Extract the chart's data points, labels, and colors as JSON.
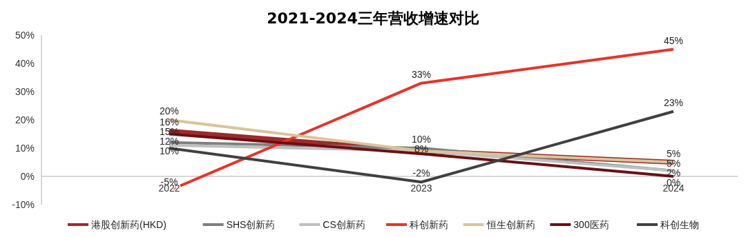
{
  "chart_data": {
    "type": "line",
    "title": "2021-2024三年营收增速对比",
    "categories": [
      "2022",
      "2023",
      "2024"
    ],
    "ylim": [
      -10,
      50
    ],
    "yticks": [
      {
        "value": -10,
        "label": "-10%"
      },
      {
        "value": 0,
        "label": "0%"
      },
      {
        "value": 10,
        "label": "10%"
      },
      {
        "value": 20,
        "label": "20%"
      },
      {
        "value": 30,
        "label": "30%"
      },
      {
        "value": 40,
        "label": "40%"
      },
      {
        "value": 50,
        "label": "50%"
      }
    ],
    "grid": false,
    "legend": "bottom",
    "marker": "none",
    "line_style": "solid",
    "series": [
      {
        "name": "港股创新药(HKD)",
        "color": "#9e2a2b",
        "values": [
          16,
          9,
          5
        ],
        "value_labels": [
          "16%",
          null,
          "5%"
        ]
      },
      {
        "name": "SHS创新药",
        "color": "#7f7f7f",
        "values": [
          12,
          10,
          2
        ],
        "value_labels": [
          "12%",
          "10%",
          "2%"
        ]
      },
      {
        "name": "CS创新药",
        "color": "#bfbfbf",
        "values": [
          11,
          9,
          2
        ],
        "value_labels": [
          null,
          null,
          null
        ]
      },
      {
        "name": "科创新药",
        "color": "#e8332a",
        "values": [
          -5,
          33,
          45
        ],
        "value_labels": [
          "-5%",
          "33%",
          "45%"
        ]
      },
      {
        "name": "恒生创新药",
        "color": "#d9c59a",
        "values": [
          20,
          9,
          5
        ],
        "value_labels": [
          "20%",
          null,
          "5%"
        ]
      },
      {
        "name": "300医药",
        "color": "#6b0f14",
        "values": [
          15,
          8,
          0
        ],
        "value_labels": [
          "15%",
          "8%",
          "0%"
        ]
      },
      {
        "name": "科创生物",
        "color": "#404040",
        "values": [
          10,
          -2,
          23
        ],
        "value_labels": [
          "10%",
          "-2%",
          "23%"
        ]
      }
    ]
  }
}
